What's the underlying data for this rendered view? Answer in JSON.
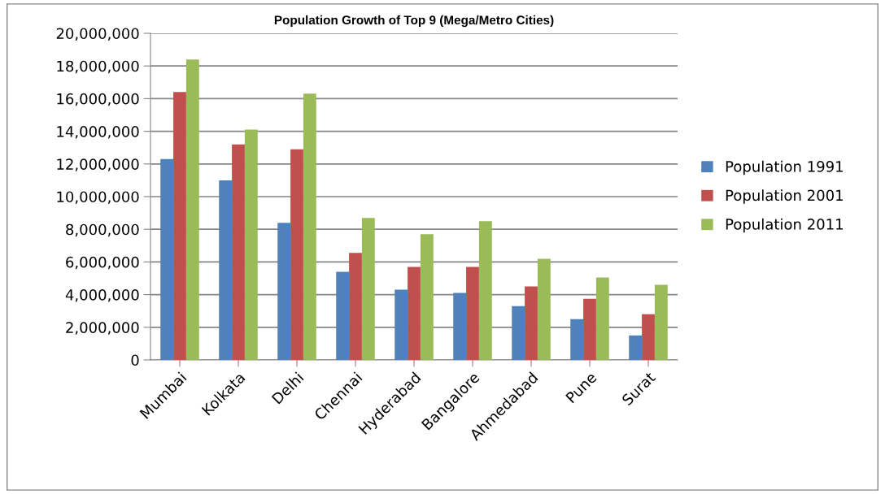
{
  "chart_data": {
    "type": "bar",
    "title": "Population Growth of Top 9 (Mega/Metro Cities)",
    "categories": [
      "Mumbai",
      "Kolkata",
      "Delhi",
      "Chennai",
      "Hyderabad",
      "Bangalore",
      "Ahmedabad",
      "Pune",
      "Surat"
    ],
    "series": [
      {
        "name": "Population 1991",
        "color": "#4f81bd",
        "values": [
          12300000,
          11000000,
          8400000,
          5400000,
          4300000,
          4100000,
          3300000,
          2500000,
          1500000
        ]
      },
      {
        "name": "Population 2001",
        "color": "#c0504d",
        "values": [
          16400000,
          13200000,
          12900000,
          6550000,
          5700000,
          5700000,
          4500000,
          3750000,
          2800000
        ]
      },
      {
        "name": "Population 2011",
        "color": "#9bbb59",
        "values": [
          18400000,
          14100000,
          16300000,
          8700000,
          7700000,
          8500000,
          6200000,
          5050000,
          4600000
        ]
      }
    ],
    "ylim": [
      0,
      20000000
    ],
    "yticks": [
      {
        "value": 0,
        "label": "0"
      },
      {
        "value": 2000000,
        "label": "2,000,000"
      },
      {
        "value": 4000000,
        "label": "4,000,000"
      },
      {
        "value": 6000000,
        "label": "6,000,000"
      },
      {
        "value": 8000000,
        "label": "8,000,000"
      },
      {
        "value": 10000000,
        "label": "10,000,000"
      },
      {
        "value": 12000000,
        "label": "12,000,000"
      },
      {
        "value": 14000000,
        "label": "14,000,000"
      },
      {
        "value": 16000000,
        "label": "16,000,000"
      },
      {
        "value": 18000000,
        "label": "18,000,000"
      },
      {
        "value": 20000000,
        "label": "20,000,000"
      }
    ],
    "grid": "y",
    "legend": "right"
  }
}
